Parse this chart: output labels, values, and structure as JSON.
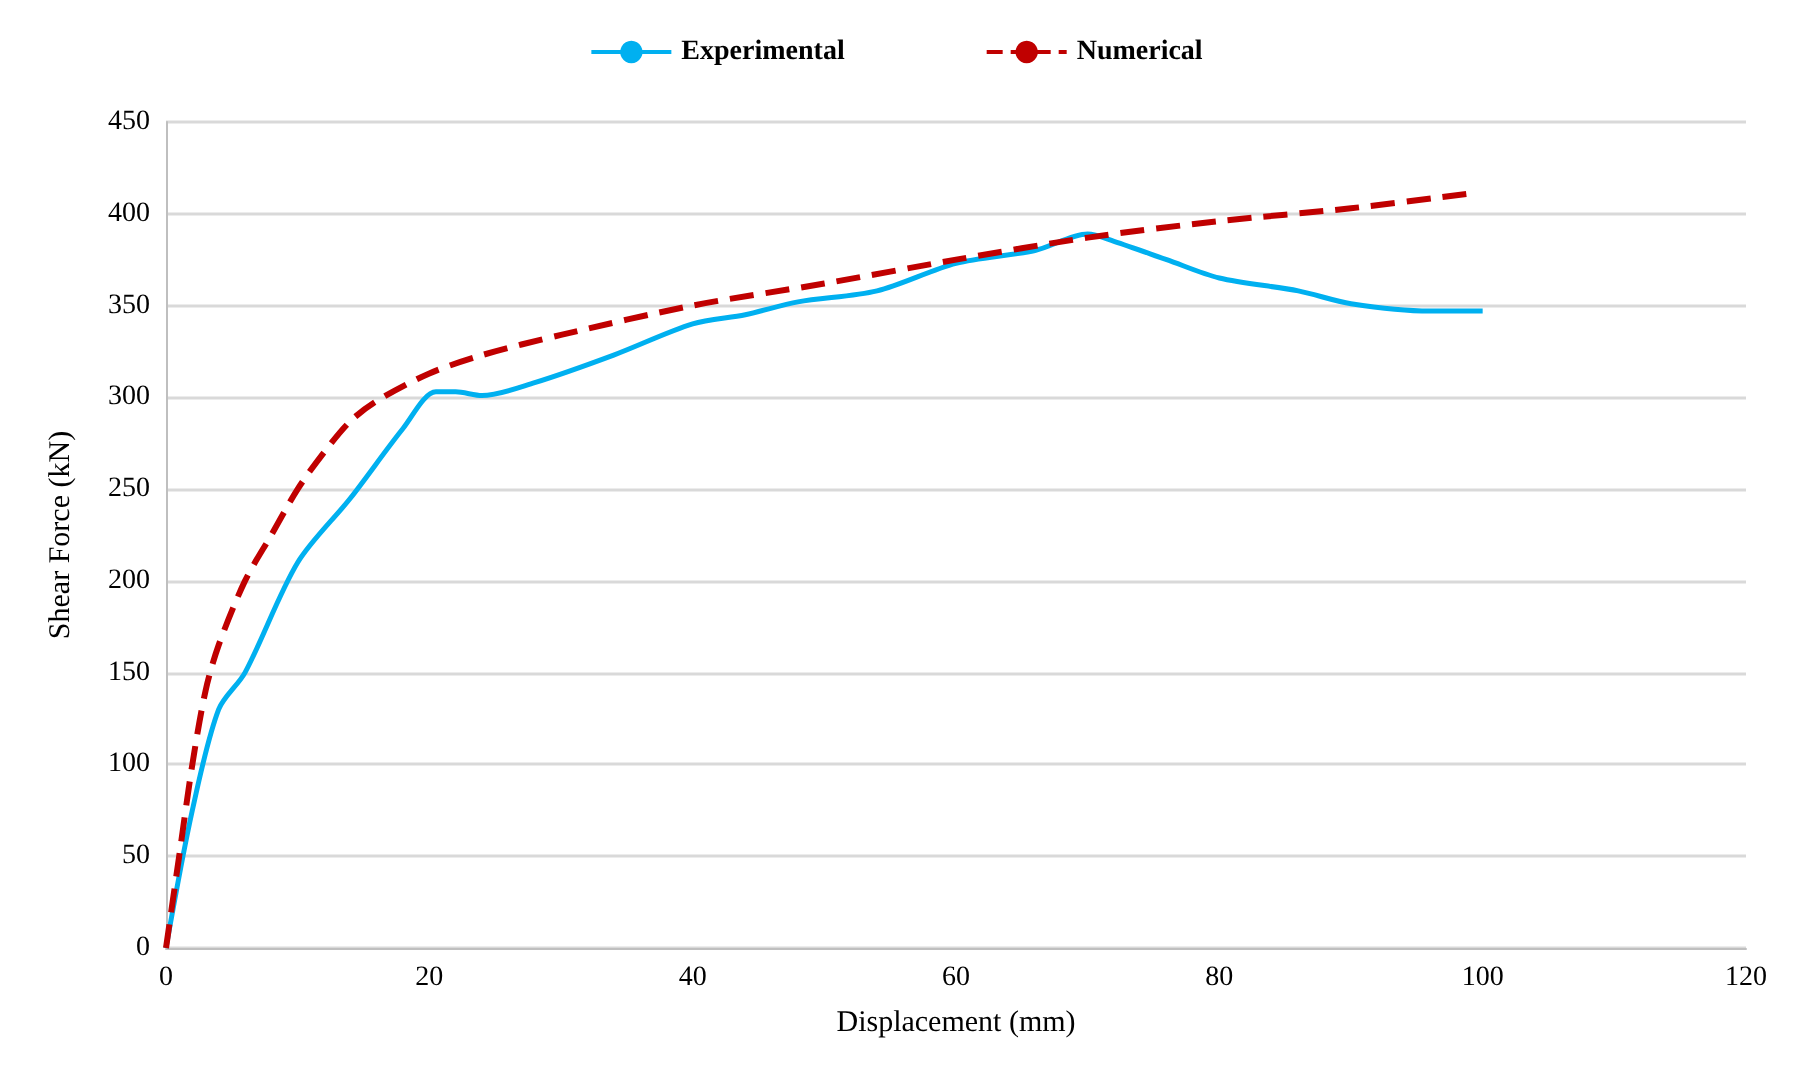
{
  "chart_data": {
    "type": "line",
    "xlabel": "Displacement (mm)",
    "ylabel": "Shear Force (kN)",
    "xlim": [
      0,
      120
    ],
    "xticks": [
      0,
      20,
      40,
      60,
      80,
      100,
      120
    ],
    "ylim": [
      0,
      450
    ],
    "yticks": [
      0,
      50,
      100,
      150,
      200,
      250,
      300,
      350,
      400,
      450
    ],
    "grid": "y",
    "legend": "top",
    "series": [
      {
        "name": "Experimental",
        "color": "#00b0f0",
        "line_style": "solid",
        "x": [
          0,
          2,
          4,
          6,
          10,
          14,
          18,
          20.5,
          22,
          24,
          28,
          34,
          40,
          44,
          48,
          54,
          60,
          66,
          70,
          72,
          76,
          80,
          86,
          90,
          96,
          100
        ],
        "values": [
          0,
          75,
          130,
          150,
          210,
          245,
          283,
          303,
          303,
          301,
          308,
          323,
          340,
          345,
          352,
          358,
          373,
          380,
          389,
          385,
          375,
          365,
          358,
          351,
          347,
          347
        ]
      },
      {
        "name": "Numerical",
        "color": "#c00000",
        "line_style": "dashed",
        "x": [
          0,
          1,
          2,
          3,
          4,
          6,
          8,
          10,
          12,
          14,
          16,
          20,
          24,
          30,
          40,
          50,
          60,
          70,
          80,
          90,
          99
        ],
        "values": [
          0,
          50,
          100,
          140,
          165,
          200,
          225,
          250,
          270,
          287,
          298,
          313,
          323,
          334,
          350,
          362,
          375,
          387,
          396,
          403,
          411
        ]
      }
    ]
  }
}
